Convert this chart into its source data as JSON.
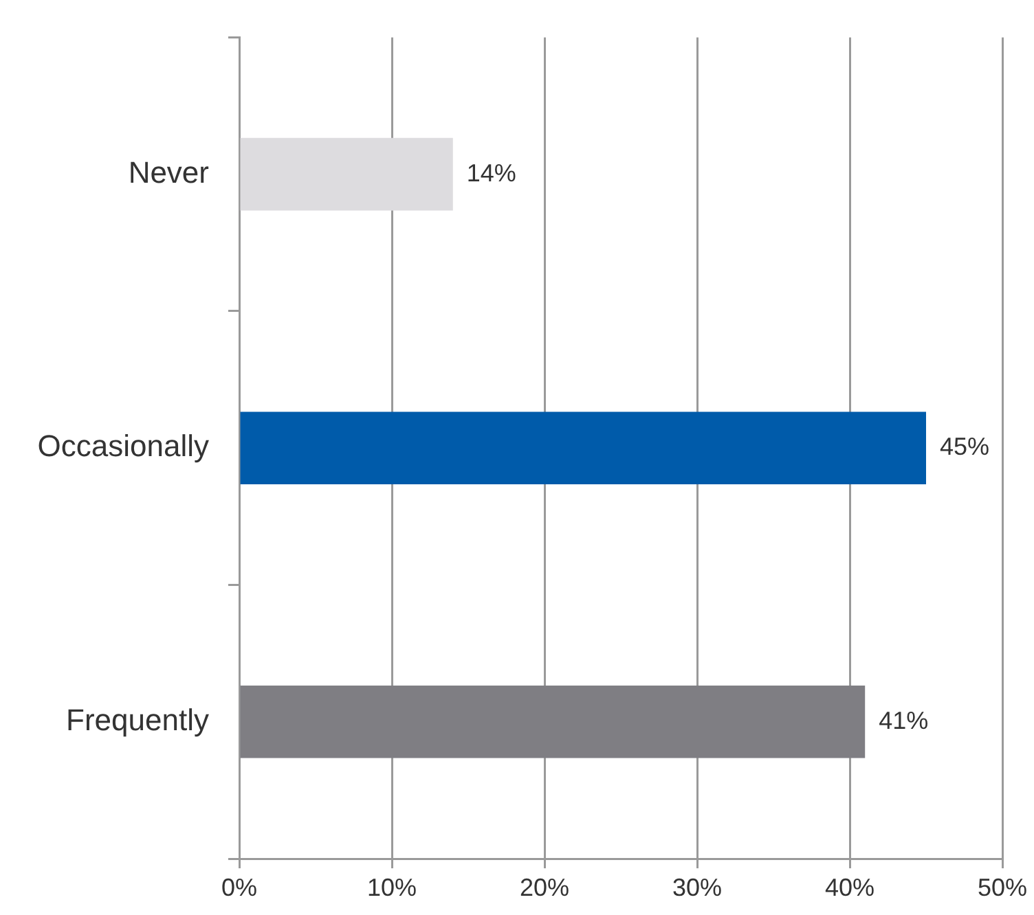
{
  "chart_data": {
    "type": "bar",
    "orientation": "horizontal",
    "categories": [
      "Never",
      "Occasionally",
      "Frequently"
    ],
    "values": [
      14,
      45,
      41
    ],
    "colors": [
      "#dddcdf",
      "#005baa",
      "#7f7e83"
    ],
    "value_labels": [
      "14%",
      "45%",
      "41%"
    ],
    "xlim": [
      0,
      50
    ],
    "xticks": [
      {
        "value": 0,
        "label": "0%"
      },
      {
        "value": 10,
        "label": "10%"
      },
      {
        "value": 20,
        "label": "20%"
      },
      {
        "value": 30,
        "label": "30%"
      },
      {
        "value": 40,
        "label": "40%"
      },
      {
        "value": 50,
        "label": "50%"
      }
    ],
    "grid": "x",
    "legend": false
  }
}
